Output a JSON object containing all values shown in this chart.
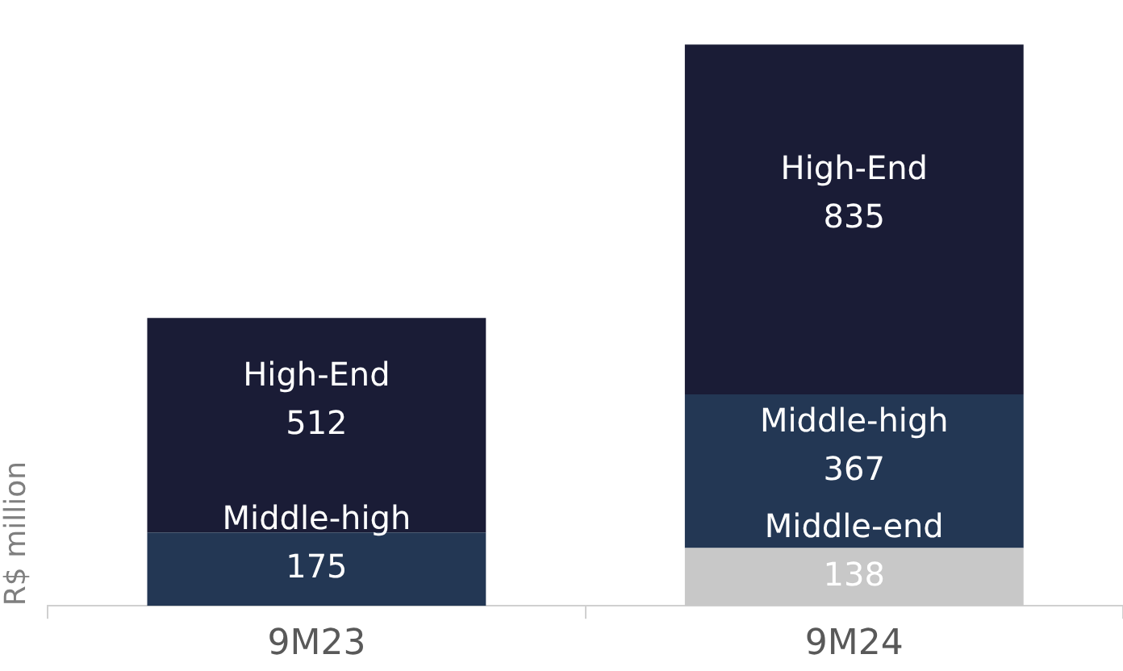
{
  "chart_data": {
    "type": "bar",
    "stacked": true,
    "ylabel": "R$ million",
    "categories": [
      "9M23",
      "9M24"
    ],
    "data_labels": true,
    "legend": false,
    "grid": false,
    "tick_labels": "x",
    "series": [
      {
        "name": "Middle-end",
        "color": "#c8c8c8",
        "values": [
          null,
          138
        ]
      },
      {
        "name": "Middle-high",
        "color": "#233754",
        "values": [
          175,
          367
        ]
      },
      {
        "name": "High-End",
        "color": "#1a1c36",
        "values": [
          512,
          835
        ]
      }
    ]
  }
}
